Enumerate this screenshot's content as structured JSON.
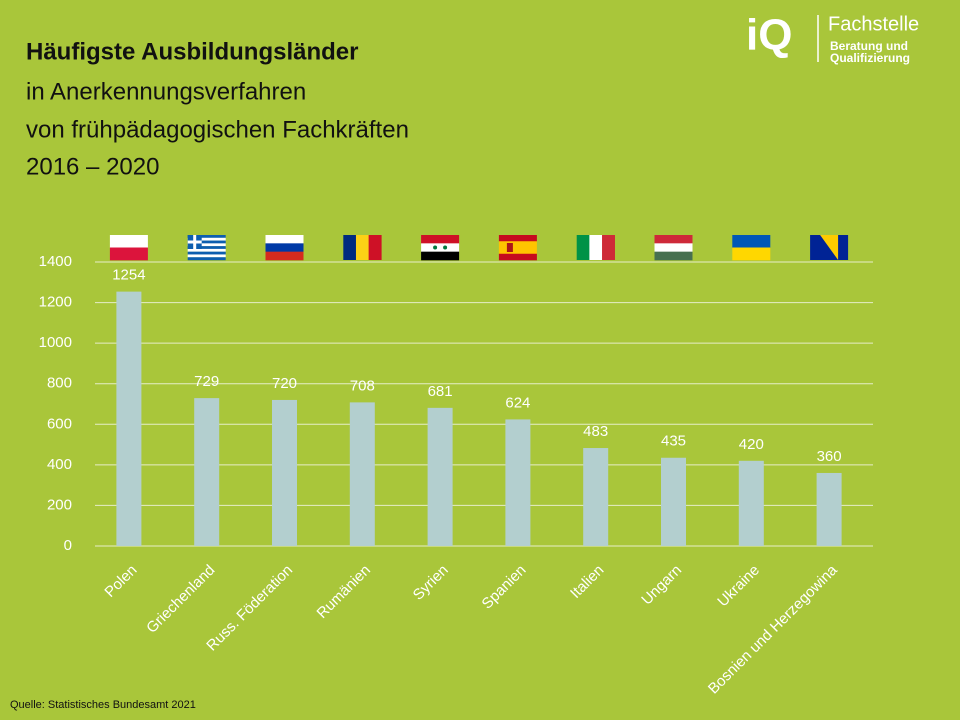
{
  "chart_data": {
    "type": "bar",
    "title": "Häufigste Ausbildungsländer",
    "subtitle": [
      "in Anerkennungsverfahren",
      "von frühpädagogischen Fachkräften",
      "2016 – 2020"
    ],
    "logo": {
      "mark": "iQ",
      "name": "Fachstelle",
      "lines": [
        "Beratung und",
        "Qualifizierung"
      ]
    },
    "source": "Quelle: Statistisches Bundesamt 2021",
    "categories": [
      "Polen",
      "Griechenland",
      "Russ. Föderation",
      "Rumänien",
      "Syrien",
      "Spanien",
      "Italien",
      "Ungarn",
      "Ukraine",
      "Bosnien und Herzegowina"
    ],
    "values": [
      1254,
      729,
      720,
      708,
      681,
      624,
      483,
      435,
      420,
      360
    ],
    "color": "#b3cfcf",
    "ylim": [
      0,
      1400
    ],
    "yticks": [
      0,
      200,
      400,
      600,
      800,
      1000,
      1200,
      1400
    ],
    "grid": true
  }
}
